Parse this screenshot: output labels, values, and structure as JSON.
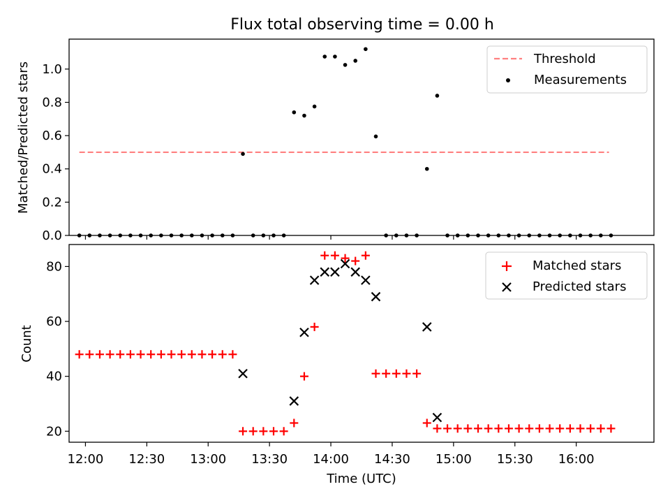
{
  "chart_data": [
    {
      "type": "scatter",
      "title": "Flux total observing time = 0.00 h",
      "xlabel": "",
      "ylabel": "Matched/Predicted stars",
      "ylim": [
        0,
        1.18
      ],
      "yticks": [
        0.0,
        0.2,
        0.4,
        0.6,
        0.8,
        1.0
      ],
      "ytick_labels": [
        "0.0",
        "0.2",
        "0.4",
        "0.6",
        "0.8",
        "1.0"
      ],
      "x_axis": "time (HH:MM UTC)",
      "xlim": [
        "11:52",
        "16:38"
      ],
      "grid": false,
      "legend_position": "upper right",
      "threshold": {
        "name": "Threshold",
        "color": "#ff8080",
        "style": "dashed",
        "x": [
          "11:57",
          "16:16"
        ],
        "y": 0.5
      },
      "series": [
        {
          "name": "Measurements",
          "color": "#000000",
          "marker": "dot",
          "x": [
            "11:57",
            "12:02",
            "12:07",
            "12:12",
            "12:17",
            "12:22",
            "12:27",
            "12:32",
            "12:37",
            "12:42",
            "12:47",
            "12:52",
            "12:57",
            "13:02",
            "13:07",
            "13:12",
            "13:17",
            "13:22",
            "13:27",
            "13:32",
            "13:37",
            "13:42",
            "13:47",
            "13:52",
            "13:57",
            "14:02",
            "14:07",
            "14:12",
            "14:17",
            "14:22",
            "14:27",
            "14:32",
            "14:37",
            "14:42",
            "14:47",
            "14:52",
            "14:57",
            "15:02",
            "15:07",
            "15:12",
            "15:17",
            "15:22",
            "15:27",
            "15:32",
            "15:37",
            "15:42",
            "15:47",
            "15:52",
            "15:57",
            "16:02",
            "16:07",
            "16:12",
            "16:17"
          ],
          "y": [
            0,
            0,
            0,
            0,
            0,
            0,
            0,
            0,
            0,
            0,
            0,
            0,
            0,
            0,
            0,
            0,
            0.49,
            0,
            0,
            0,
            0,
            0.74,
            0.72,
            0.775,
            1.075,
            1.075,
            1.025,
            1.05,
            1.12,
            0.595,
            0,
            0,
            0,
            0,
            0.4,
            0.84,
            0,
            0,
            0,
            0,
            0,
            0,
            0,
            0,
            0,
            0,
            0,
            0,
            0,
            0,
            0,
            0,
            0
          ]
        }
      ]
    },
    {
      "type": "scatter",
      "title": "",
      "xlabel": "Time (UTC)",
      "ylabel": "Count",
      "ylim": [
        16,
        88
      ],
      "yticks": [
        20,
        40,
        60,
        80
      ],
      "ytick_labels": [
        "20",
        "40",
        "60",
        "80"
      ],
      "x_axis": "time (HH:MM UTC)",
      "xlim": [
        "11:52",
        "16:38"
      ],
      "xticks": [
        "12:00",
        "12:30",
        "13:00",
        "13:30",
        "14:00",
        "14:30",
        "15:00",
        "15:30",
        "16:00"
      ],
      "grid": false,
      "legend_position": "upper right",
      "series": [
        {
          "name": "Matched stars",
          "color": "#ff0000",
          "marker": "plus",
          "x": [
            "11:57",
            "12:02",
            "12:07",
            "12:12",
            "12:17",
            "12:22",
            "12:27",
            "12:32",
            "12:37",
            "12:42",
            "12:47",
            "12:52",
            "12:57",
            "13:02",
            "13:07",
            "13:12",
            "13:17",
            "13:22",
            "13:27",
            "13:32",
            "13:37",
            "13:42",
            "13:47",
            "13:52",
            "13:57",
            "14:02",
            "14:07",
            "14:12",
            "14:17",
            "14:22",
            "14:27",
            "14:32",
            "14:37",
            "14:42",
            "14:47",
            "14:52",
            "14:57",
            "15:02",
            "15:07",
            "15:12",
            "15:17",
            "15:22",
            "15:27",
            "15:32",
            "15:37",
            "15:42",
            "15:47",
            "15:52",
            "15:57",
            "16:02",
            "16:07",
            "16:12",
            "16:17"
          ],
          "y": [
            48,
            48,
            48,
            48,
            48,
            48,
            48,
            48,
            48,
            48,
            48,
            48,
            48,
            48,
            48,
            48,
            20,
            20,
            20,
            20,
            20,
            23,
            40,
            58,
            84,
            84,
            83,
            82,
            84,
            41,
            41,
            41,
            41,
            41,
            23,
            21,
            21,
            21,
            21,
            21,
            21,
            21,
            21,
            21,
            21,
            21,
            21,
            21,
            21,
            21,
            21,
            21,
            21
          ]
        },
        {
          "name": "Predicted stars",
          "color": "#000000",
          "marker": "x",
          "x": [
            "13:17",
            "13:42",
            "13:47",
            "13:52",
            "13:57",
            "14:02",
            "14:07",
            "14:12",
            "14:17",
            "14:22",
            "14:47",
            "14:52"
          ],
          "y": [
            41,
            31,
            56,
            75,
            78,
            78,
            81,
            78,
            75,
            69,
            58,
            25
          ]
        }
      ]
    }
  ]
}
